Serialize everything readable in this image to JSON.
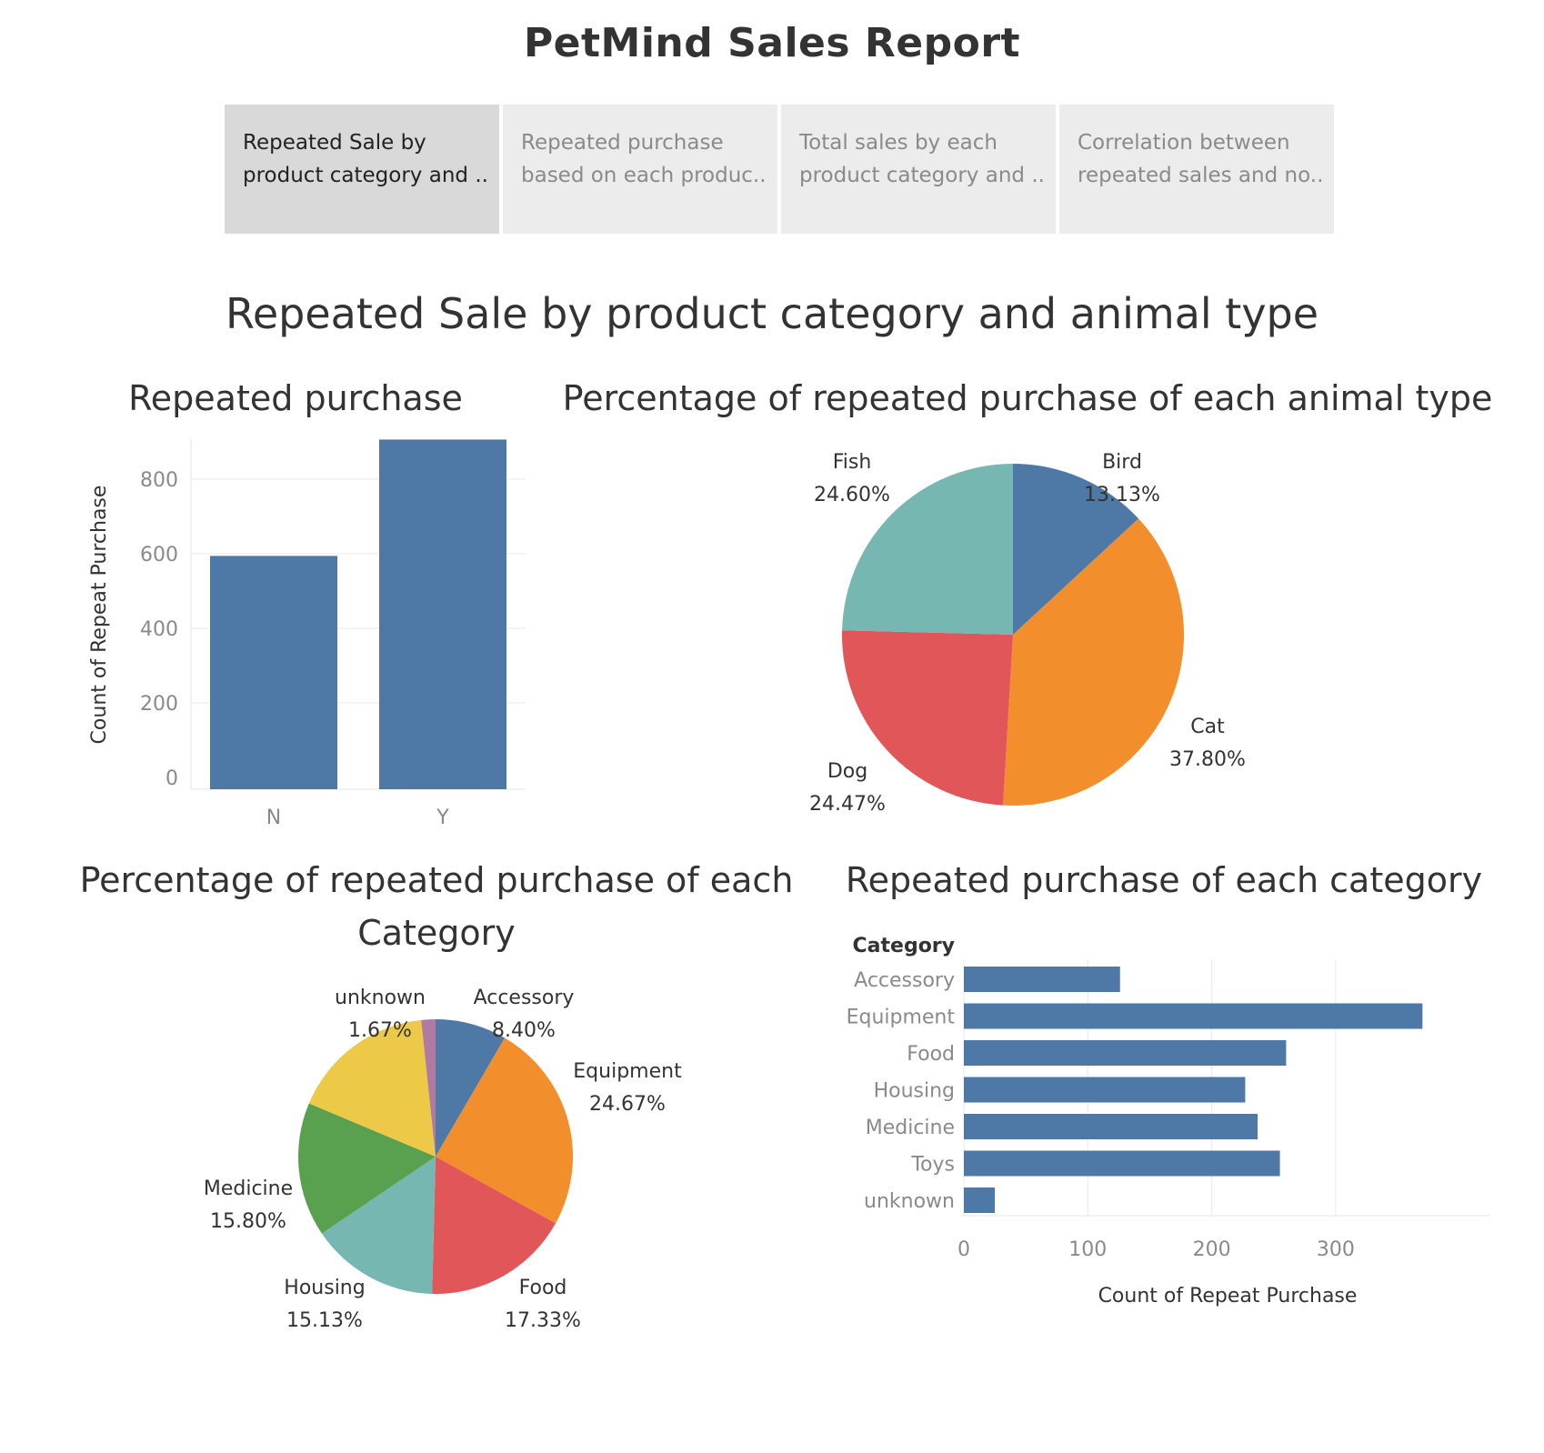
{
  "report": {
    "title": "PetMind Sales Report"
  },
  "tabs": [
    {
      "line1": "Repeated Sale by",
      "line2": "product category and ..",
      "active": true
    },
    {
      "line1": "Repeated purchase",
      "line2": "based on each produc..",
      "active": false
    },
    {
      "line1": "Total sales by each",
      "line2": "product category and ..",
      "active": false
    },
    {
      "line1": "Correlation between",
      "line2": "repeated sales and no..",
      "active": false
    }
  ],
  "sheet": {
    "title": "Repeated Sale by product category and animal type"
  },
  "colors": {
    "blue": "#4e79a7",
    "orange": "#f28e2b",
    "red": "#e15759",
    "teal": "#76b7b2",
    "green": "#59a14f",
    "yellow": "#edc948",
    "purple": "#b07aa1"
  },
  "chart_data": [
    {
      "id": "repeated-purchase",
      "type": "bar",
      "title": "Repeated purchase",
      "categories": [
        "N",
        "Y"
      ],
      "values": [
        594,
        906
      ],
      "ylabel": "Count of Repeat Purchase",
      "xlabel": "",
      "ylim": [
        0,
        950
      ],
      "yticks": [
        0,
        200,
        400,
        600,
        800
      ],
      "grid": true
    },
    {
      "id": "animal-pie",
      "type": "pie",
      "title": "Percentage of repeated purchase of each animal type",
      "labels": [
        "Bird",
        "Cat",
        "Dog",
        "Fish"
      ],
      "values": [
        13.13,
        37.8,
        24.47,
        24.6
      ],
      "value_labels": [
        "13.13%",
        "37.80%",
        "24.47%",
        "24.60%"
      ],
      "colors": [
        "#4e79a7",
        "#f28e2b",
        "#e15759",
        "#76b7b2"
      ]
    },
    {
      "id": "category-pie",
      "type": "pie",
      "title_line1": "Percentage of repeated purchase of each",
      "title_line2": "Category",
      "labels": [
        "Accessory",
        "Equipment",
        "Food",
        "Housing",
        "Medicine",
        "Toys",
        "unknown"
      ],
      "values": [
        8.4,
        24.67,
        17.33,
        15.13,
        15.8,
        17.0,
        1.67
      ],
      "value_labels": [
        "8.40%",
        "24.67%",
        "17.33%",
        "15.13%",
        "15.80%",
        "",
        "1.67%"
      ],
      "show_label": [
        true,
        true,
        true,
        true,
        true,
        false,
        true
      ],
      "colors": [
        "#4e79a7",
        "#f28e2b",
        "#e15759",
        "#76b7b2",
        "#59a14f",
        "#edc948",
        "#b07aa1"
      ]
    },
    {
      "id": "category-bar",
      "type": "bar",
      "orientation": "horizontal",
      "title": "Repeated purchase of each category",
      "axis_header": "Category",
      "categories": [
        "Accessory",
        "Equipment",
        "Food",
        "Housing",
        "Medicine",
        "Toys",
        "unknown"
      ],
      "values": [
        126,
        370,
        260,
        227,
        237,
        255,
        25
      ],
      "xlabel": "Count of Repeat Purchase",
      "xlim": [
        0,
        390
      ],
      "xticks": [
        0,
        100,
        200,
        300
      ],
      "grid": true
    }
  ]
}
